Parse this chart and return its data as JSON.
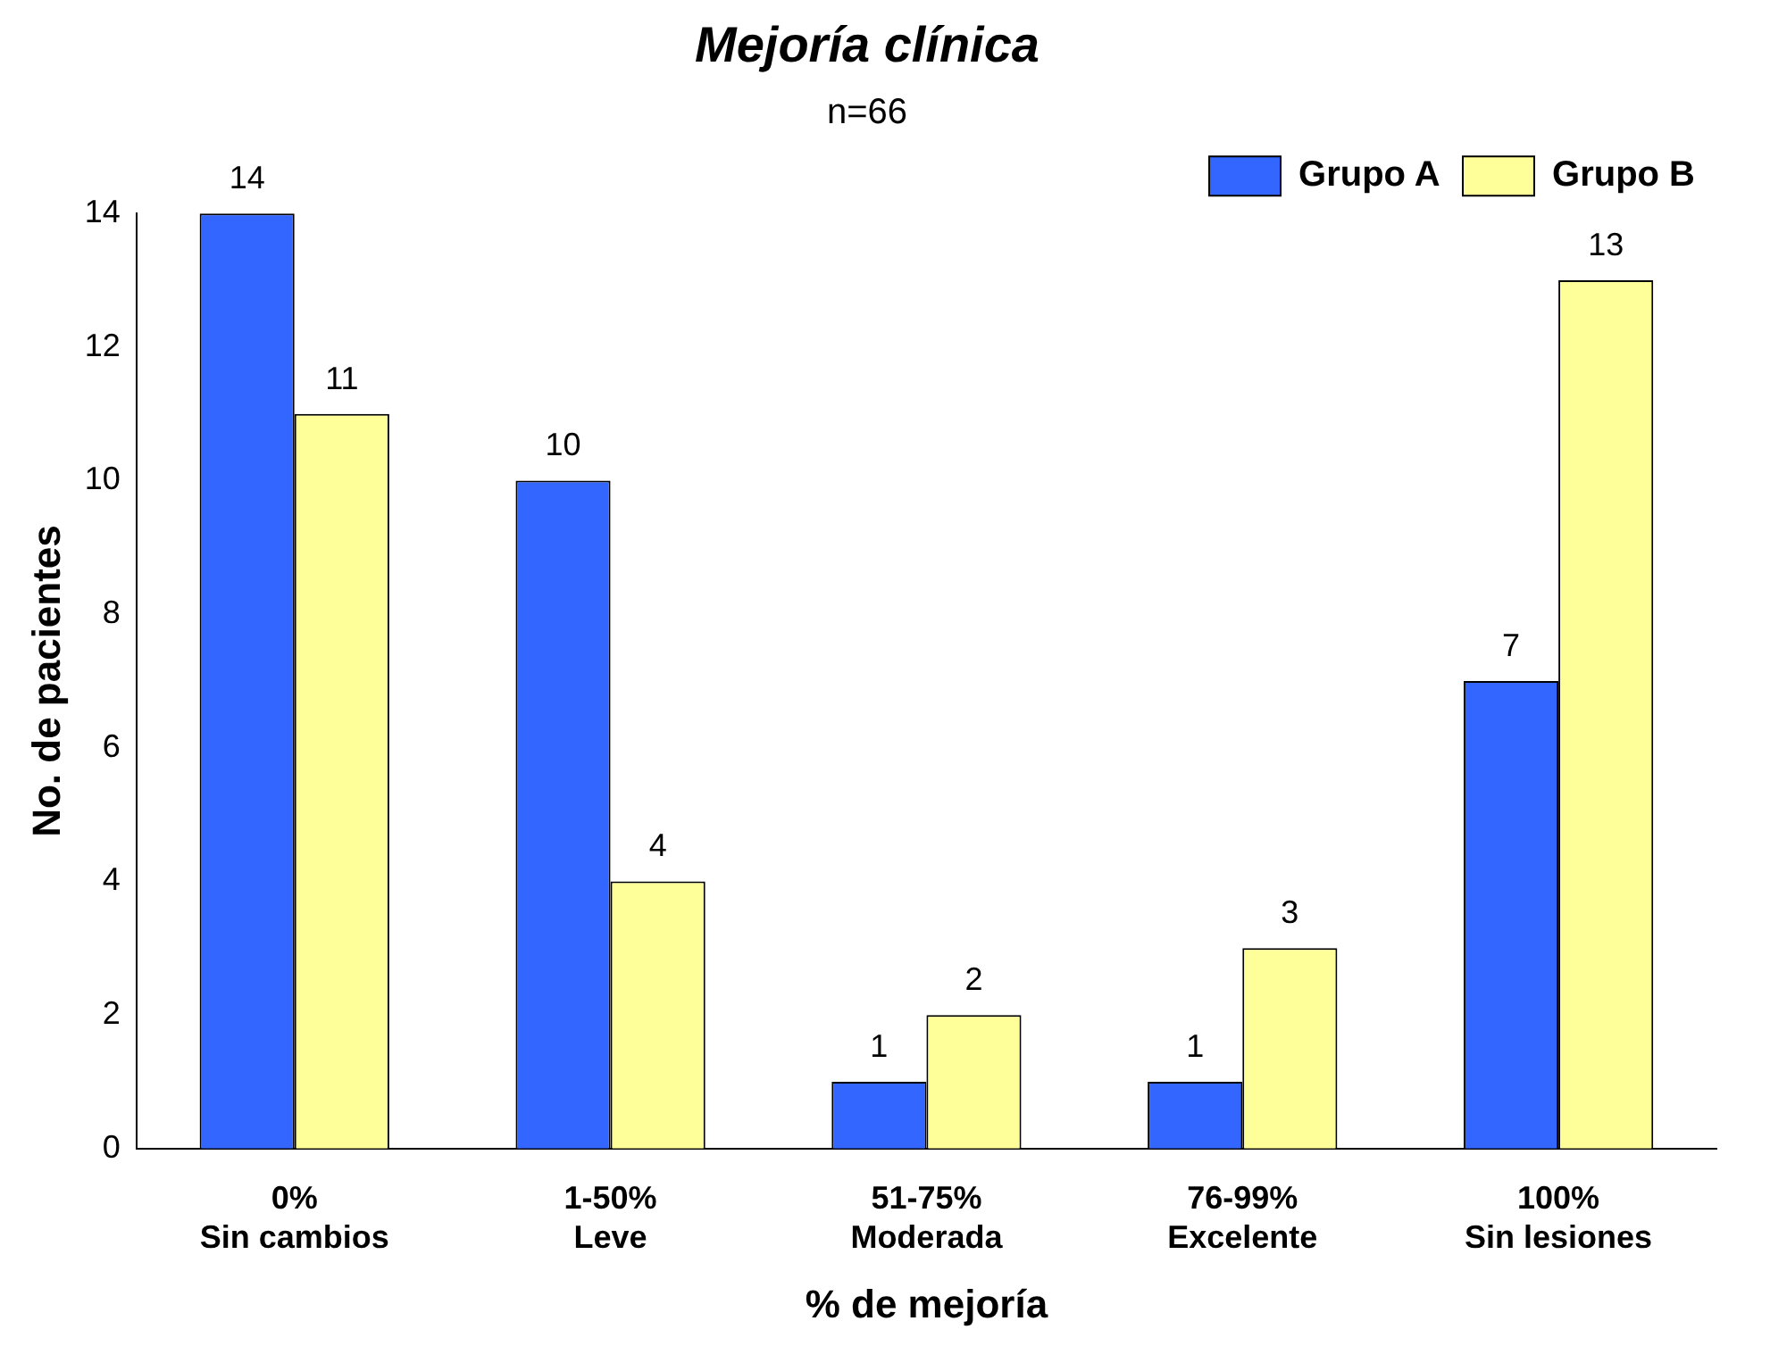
{
  "chart_data": {
    "type": "bar",
    "title": "Mejoría clínica",
    "subtitle": "n=66",
    "xlabel": "% de mejoría",
    "ylabel": "No. de pacientes",
    "categories": [
      "0%\nSin cambios",
      "1-50%\nLeve",
      "51-75%\nModerada",
      "76-99%\nExcelente",
      "100%\nSin lesiones"
    ],
    "series": [
      {
        "name": "Grupo A",
        "color": "#3366ff",
        "values": [
          14,
          10,
          1,
          1,
          7
        ]
      },
      {
        "name": "Grupo B",
        "color": "#ffff99",
        "values": [
          11,
          4,
          2,
          3,
          13
        ]
      }
    ],
    "ylim": [
      0,
      14
    ],
    "yticks": [
      0,
      2,
      4,
      6,
      8,
      10,
      12,
      14
    ],
    "grid": false,
    "legend": "top right",
    "data_labels": true
  }
}
